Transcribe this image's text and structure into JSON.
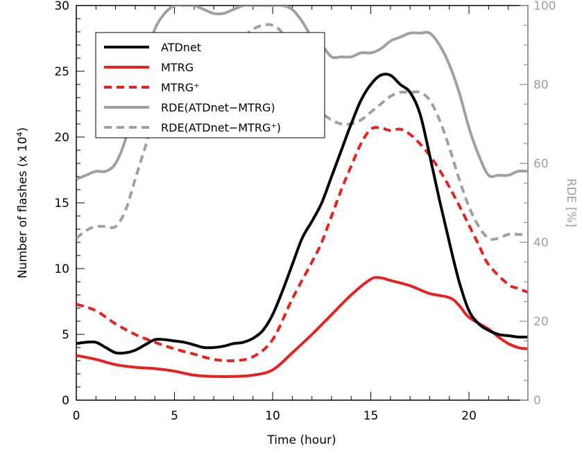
{
  "chart_data": {
    "type": "line",
    "xlabel": "Time (hour)",
    "ylabel_prefix": "Number of flashes (x 10",
    "ylabel_exp": "4",
    "ylabel_suffix": ")",
    "y2label": "RDE [%]",
    "xlim": [
      0,
      23
    ],
    "ylim": [
      0,
      30
    ],
    "y2lim": [
      0,
      100
    ],
    "xticks": [
      0,
      5,
      10,
      15,
      20
    ],
    "yticks": [
      0,
      5,
      10,
      15,
      20,
      25,
      30
    ],
    "y2ticks": [
      0,
      20,
      40,
      60,
      80,
      100
    ],
    "colors": {
      "black": "#000000",
      "red": "#e8201e",
      "gray": "#a0a0a0",
      "axis2": "#a0a0a0"
    },
    "legend_placement": "top-left",
    "series": [
      {
        "name": "ATDnet",
        "axis": "left",
        "color": "#000000",
        "dash": false,
        "x": [
          0,
          0.5,
          1,
          1.5,
          2,
          2.5,
          3,
          3.5,
          4,
          4.5,
          5,
          5.5,
          6,
          6.5,
          7,
          7.5,
          8,
          8.5,
          9,
          9.5,
          10,
          10.5,
          11,
          11.5,
          12,
          12.5,
          13,
          13.5,
          14,
          14.5,
          15,
          15.5,
          16,
          16.5,
          17,
          17.5,
          18,
          18.5,
          19,
          19.5,
          20,
          20.5,
          21,
          21.5,
          22,
          22.5,
          23
        ],
        "y": [
          4.3,
          4.4,
          4.4,
          4.0,
          3.6,
          3.6,
          3.8,
          4.2,
          4.6,
          4.6,
          4.5,
          4.4,
          4.2,
          4.0,
          4.0,
          4.1,
          4.3,
          4.4,
          4.7,
          5.3,
          6.5,
          8.3,
          10.3,
          12.3,
          13.6,
          15.0,
          17.0,
          19.0,
          21.0,
          22.8,
          24.0,
          24.7,
          24.7,
          24.0,
          23.4,
          21.8,
          18.6,
          15.2,
          12.0,
          9.0,
          6.8,
          5.8,
          5.3,
          5.0,
          4.9,
          4.8,
          4.8
        ]
      },
      {
        "name": "MTRG",
        "axis": "left",
        "color": "#e8201e",
        "dash": false,
        "x": [
          0,
          1,
          2,
          3,
          4,
          5,
          6,
          7,
          8,
          9,
          10,
          11,
          12,
          13,
          14,
          15,
          15.5,
          16,
          17,
          18,
          19,
          19.5,
          20,
          21,
          21.5,
          22,
          22.5,
          23
        ],
        "y": [
          3.4,
          3.1,
          2.7,
          2.5,
          2.4,
          2.2,
          1.9,
          1.8,
          1.8,
          1.9,
          2.3,
          3.6,
          5.0,
          6.5,
          8.0,
          9.2,
          9.3,
          9.1,
          8.7,
          8.1,
          7.8,
          7.2,
          6.3,
          5.4,
          4.8,
          4.3,
          4.0,
          3.9
        ]
      },
      {
        "name": "MTRG⁺",
        "axis": "left",
        "color": "#e8201e",
        "dash": true,
        "x": [
          0,
          1,
          2,
          3,
          4,
          5,
          6,
          7,
          8,
          9,
          10,
          11,
          12,
          12.5,
          13,
          13.5,
          14,
          14.5,
          15,
          15.5,
          16,
          16.5,
          17,
          17.5,
          18,
          18.5,
          19,
          19.5,
          20,
          20.5,
          21,
          22,
          22.5,
          23
        ],
        "y": [
          7.3,
          6.8,
          5.8,
          5.0,
          4.4,
          3.9,
          3.5,
          3.1,
          3.0,
          3.3,
          4.6,
          7.7,
          10.5,
          12.0,
          14.0,
          16.0,
          17.8,
          19.5,
          20.6,
          20.7,
          20.5,
          20.6,
          20.2,
          19.5,
          18.6,
          17.5,
          16.2,
          14.8,
          13.3,
          11.8,
          10.3,
          8.8,
          8.5,
          8.2
        ]
      },
      {
        "name": "RDE(ATDnet−MTRG)",
        "axis": "right",
        "color": "#a0a0a0",
        "dash": false,
        "x": [
          0,
          0.5,
          1,
          1.5,
          2,
          2.5,
          3,
          3.5,
          4,
          4.5,
          5,
          5.5,
          6,
          6.5,
          7,
          7.5,
          8,
          8.5,
          9,
          9.5,
          10,
          10.5,
          11,
          11.5,
          12,
          12.5,
          13,
          13.5,
          14,
          14.5,
          15,
          15.5,
          16,
          16.5,
          17,
          17.5,
          18,
          18.5,
          19,
          19.5,
          20,
          20.5,
          21,
          21.5,
          22,
          22.5,
          23
        ],
        "y": [
          56,
          57,
          58,
          58,
          60,
          66,
          76,
          86,
          94,
          98,
          100,
          100,
          100,
          99,
          98,
          98,
          99,
          100,
          100,
          100,
          100,
          100,
          99,
          96,
          92,
          90,
          87,
          87,
          87,
          88,
          88,
          89,
          91,
          92,
          93,
          93,
          93,
          90,
          85,
          78,
          69,
          62,
          57,
          57,
          57,
          58,
          58
        ]
      },
      {
        "name": "RDE(ATDnet−MTRG⁺)",
        "axis": "right",
        "color": "#a0a0a0",
        "dash": true,
        "x": [
          0,
          0.5,
          1,
          1.5,
          2,
          2.5,
          3,
          3.5,
          4,
          4.5,
          5,
          5.5,
          6,
          6.5,
          7,
          7.5,
          8,
          8.5,
          9,
          9.5,
          10,
          10.5,
          11,
          11.5,
          12,
          12.5,
          13,
          13.5,
          14,
          14.5,
          15,
          15.5,
          16,
          16.5,
          17,
          17.5,
          18,
          18.5,
          19,
          19.5,
          20,
          20.5,
          21,
          21.5,
          22,
          22.5,
          23
        ],
        "y": [
          41,
          43,
          44,
          44,
          44,
          48,
          56,
          64,
          72,
          77,
          80,
          82,
          83,
          83,
          84,
          86,
          89,
          92,
          94,
          95,
          95,
          93,
          88,
          82,
          77,
          73,
          71,
          70,
          70,
          71,
          73,
          75,
          77,
          78,
          78,
          78,
          76,
          71,
          64,
          56,
          49,
          44,
          41,
          41,
          42,
          42,
          42
        ]
      }
    ]
  }
}
